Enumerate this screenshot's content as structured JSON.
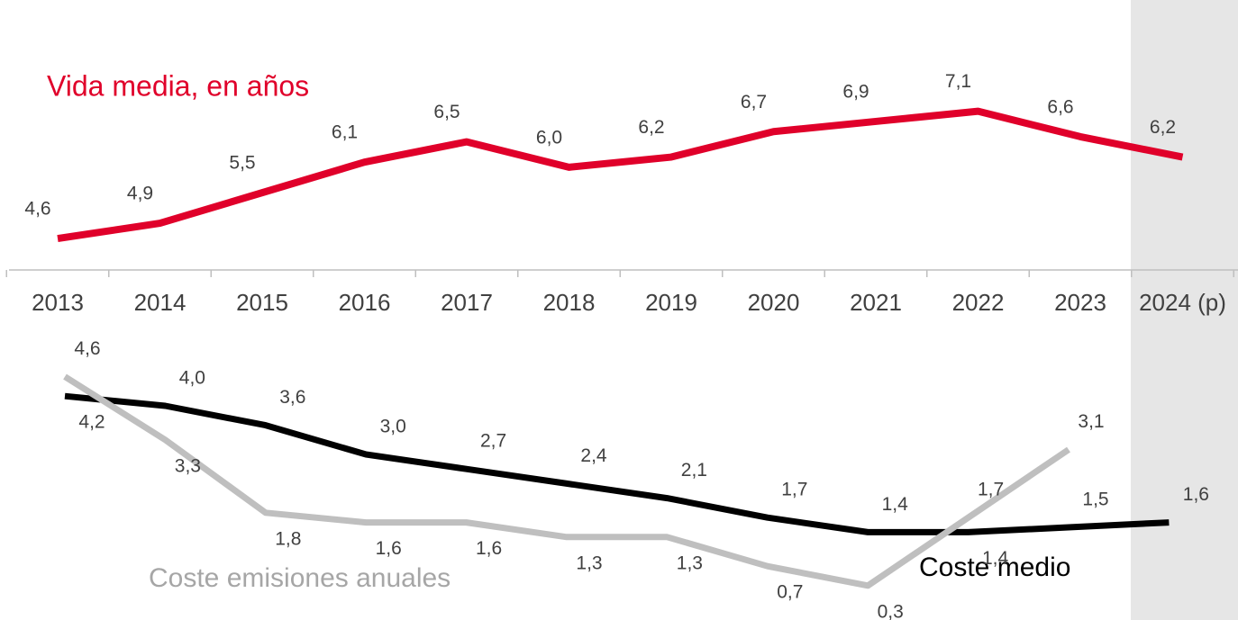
{
  "chart_data": [
    {
      "type": "line",
      "categories": [
        "2013",
        "2014",
        "2015",
        "2016",
        "2017",
        "2018",
        "2019",
        "2020",
        "2021",
        "2022",
        "2023",
        "2024 (p)"
      ],
      "series": [
        {
          "name": "Vida media, en años",
          "color": "#e0002a",
          "values": [
            4.6,
            4.9,
            5.5,
            6.1,
            6.5,
            6.0,
            6.2,
            6.7,
            6.9,
            7.1,
            6.6,
            6.2
          ],
          "value_labels": [
            "4,6",
            "4,9",
            "5,5",
            "6,1",
            "6,5",
            "6,0",
            "6,2",
            "6,7",
            "6,9",
            "7,1",
            "6,6",
            "6,2"
          ]
        }
      ],
      "ylim": [
        4,
        7.5
      ]
    },
    {
      "type": "line",
      "series": [
        {
          "name": "Coste medio",
          "color": "#000000",
          "values": [
            4.2,
            4.0,
            3.6,
            3.0,
            2.7,
            2.4,
            2.1,
            1.7,
            1.4,
            1.4,
            1.5,
            1.6
          ],
          "value_labels": [
            "4,2",
            "4,0",
            "3,6",
            "3,0",
            "2,7",
            "2,4",
            "2,1",
            "1,7",
            "1,4",
            "1,4",
            "1,5",
            "1,6"
          ]
        },
        {
          "name": "Coste emisiones anuales",
          "color": "#bfbfbf",
          "values": [
            4.6,
            3.3,
            1.8,
            1.6,
            1.6,
            1.3,
            1.3,
            0.7,
            0.3,
            1.7,
            3.1,
            null
          ],
          "value_labels": [
            "4,6",
            "3,3",
            "1,8",
            "1,6",
            "1,6",
            "1,3",
            "1,3",
            "0,7",
            "0,3",
            "1,7",
            "3,1",
            null
          ]
        }
      ],
      "ylim": [
        0,
        5
      ]
    }
  ]
}
